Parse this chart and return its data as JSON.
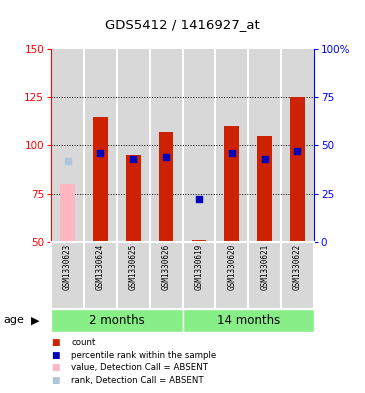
{
  "title": "GDS5412 / 1416927_at",
  "samples": [
    "GSM1330623",
    "GSM1330624",
    "GSM1330625",
    "GSM1330626",
    "GSM1330619",
    "GSM1330620",
    "GSM1330621",
    "GSM1330622"
  ],
  "count_values": [
    null,
    115,
    95,
    107,
    51,
    110,
    105,
    125
  ],
  "count_absent": [
    80,
    null,
    null,
    null,
    null,
    null,
    null,
    null
  ],
  "rank_pct": [
    null,
    46,
    43,
    44,
    null,
    46,
    43,
    47
  ],
  "rank_absent_pct": [
    42,
    null,
    null,
    null,
    null,
    null,
    null,
    null
  ],
  "rank_619_pct": 22,
  "ylim_left": [
    50,
    150
  ],
  "ylim_right": [
    0,
    100
  ],
  "yticks_left": [
    50,
    75,
    100,
    125,
    150
  ],
  "yticks_right": [
    0,
    25,
    50,
    75,
    100
  ],
  "yticklabels_right": [
    "0",
    "25",
    "50",
    "75",
    "100%"
  ],
  "bar_color": "#cc2200",
  "rank_color": "#0000bb",
  "absent_bar_color": "#ffb6c1",
  "absent_rank_color": "#b0c4de",
  "bg_color": "#d8d8d8",
  "green_color": "#88ee88",
  "bar_width": 0.45,
  "group1_label": "2 months",
  "group2_label": "14 months"
}
